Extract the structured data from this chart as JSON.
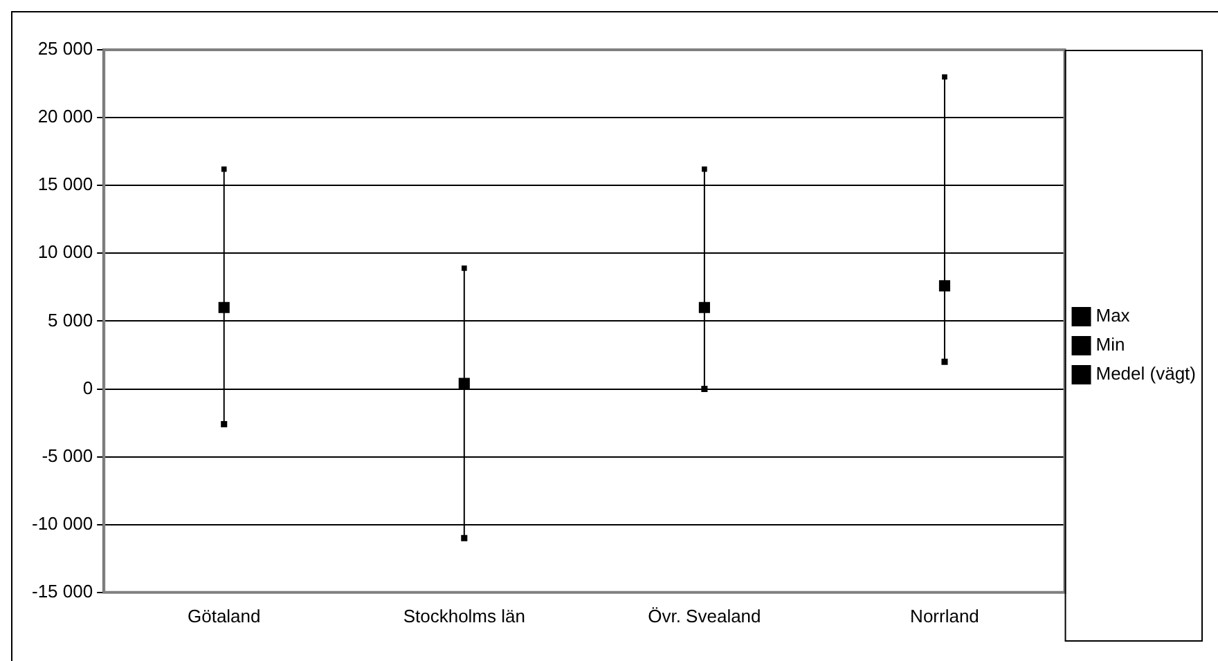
{
  "chart_data": {
    "type": "scatter",
    "categories": [
      "Götaland",
      "Stockholms län",
      "Övr. Svealand",
      "Norrland"
    ],
    "series": [
      {
        "name": "Max",
        "color": "#000000",
        "marker": "square",
        "values": [
          16200,
          8900,
          16200,
          23000
        ]
      },
      {
        "name": "Min",
        "color": "#000000",
        "marker": "square",
        "values": [
          -2600,
          -11000,
          0,
          2000
        ]
      },
      {
        "name": "Medel (vägt)",
        "color": "#000000",
        "marker": "square",
        "values": [
          6000,
          400,
          6000,
          7600
        ]
      }
    ],
    "ylim": [
      -15000,
      25000
    ],
    "yticks": [
      {
        "value": -15000,
        "label": "-15 000"
      },
      {
        "value": -10000,
        "label": "-10 000"
      },
      {
        "value": -5000,
        "label": "-5 000"
      },
      {
        "value": 0,
        "label": "0"
      },
      {
        "value": 5000,
        "label": "5 000"
      },
      {
        "value": 10000,
        "label": "10 000"
      },
      {
        "value": 15000,
        "label": "15 000"
      },
      {
        "value": 20000,
        "label": "20 000"
      },
      {
        "value": 25000,
        "label": "25 000"
      }
    ],
    "grid": "y",
    "legend": "right"
  }
}
